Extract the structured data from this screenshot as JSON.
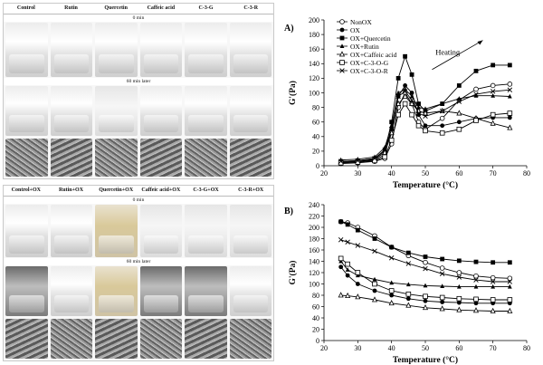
{
  "figure": {
    "top_panel": {
      "headers": [
        "Control",
        "Rutin",
        "Quercetin",
        "Caffeic acid",
        "C-3-G",
        "C-3-R"
      ],
      "caption_0": "0 min",
      "caption_60": "60 min later"
    },
    "bottom_panel": {
      "headers": [
        "Control+OX",
        "Rutin+OX",
        "Quercetin+OX",
        "Caffeic acid+OX",
        "C-3-G+OX",
        "C-3-R+OX"
      ],
      "caption_0": "0 min",
      "caption_60": "60 min later"
    }
  },
  "chart_data": [
    {
      "type": "line",
      "panel_label": "A)",
      "title": "",
      "xlabel": "Temperature (°C)",
      "ylabel": "G'(Pa)",
      "xlim": [
        20,
        80
      ],
      "ylim": [
        0,
        200
      ],
      "xticks": [
        20,
        30,
        40,
        50,
        60,
        70,
        80
      ],
      "yticks": [
        0,
        20,
        40,
        60,
        80,
        100,
        120,
        140,
        160,
        180,
        200
      ],
      "annotation": "Heating",
      "legend": [
        "NonOX",
        "OX",
        "OX+Quercetin",
        "OX+Rutin",
        "OX+Caffeic acid",
        "OX+C-3-O-G",
        "OX+C-3-O-R"
      ],
      "series": [
        {
          "name": "NonOX",
          "marker": "circle-open",
          "x": [
            25,
            30,
            35,
            38,
            40,
            42,
            44,
            46,
            48,
            50,
            55,
            60,
            65,
            70,
            75
          ],
          "y": [
            3,
            4,
            6,
            10,
            30,
            80,
            100,
            85,
            60,
            50,
            65,
            90,
            105,
            110,
            112
          ]
        },
        {
          "name": "OX",
          "marker": "circle-filled",
          "x": [
            25,
            30,
            35,
            38,
            40,
            42,
            44,
            46,
            48,
            50,
            55,
            60,
            65,
            70,
            75
          ],
          "y": [
            5,
            6,
            8,
            15,
            50,
            95,
            110,
            100,
            70,
            55,
            55,
            60,
            65,
            66,
            66
          ]
        },
        {
          "name": "OX+Quercetin",
          "marker": "square-filled",
          "x": [
            25,
            30,
            35,
            38,
            40,
            42,
            44,
            46,
            48,
            50,
            55,
            60,
            65,
            70,
            75
          ],
          "y": [
            6,
            7,
            10,
            20,
            60,
            120,
            150,
            125,
            85,
            75,
            85,
            110,
            130,
            138,
            138
          ]
        },
        {
          "name": "OX+Rutin",
          "marker": "triangle-filled",
          "x": [
            25,
            30,
            35,
            38,
            40,
            42,
            44,
            46,
            48,
            50,
            55,
            60,
            65,
            70,
            75
          ],
          "y": [
            8,
            9,
            12,
            25,
            55,
            100,
            105,
            95,
            80,
            78,
            85,
            92,
            96,
            96,
            95
          ]
        },
        {
          "name": "OX+Caffeic acid",
          "marker": "triangle-open",
          "x": [
            25,
            30,
            35,
            38,
            40,
            42,
            44,
            46,
            48,
            50,
            55,
            60,
            65,
            70,
            75
          ],
          "y": [
            5,
            6,
            9,
            18,
            45,
            85,
            95,
            85,
            75,
            72,
            75,
            72,
            65,
            58,
            52
          ]
        },
        {
          "name": "OX+C-3-O-G",
          "marker": "square-open",
          "x": [
            25,
            30,
            35,
            38,
            40,
            42,
            44,
            46,
            48,
            50,
            55,
            60,
            65,
            70,
            75
          ],
          "y": [
            4,
            5,
            7,
            12,
            35,
            70,
            85,
            70,
            55,
            48,
            45,
            50,
            62,
            70,
            72
          ]
        },
        {
          "name": "OX+C-3-O-R",
          "marker": "cross",
          "x": [
            25,
            30,
            35,
            38,
            40,
            42,
            44,
            46,
            48,
            50,
            55,
            60,
            65,
            70,
            75
          ],
          "y": [
            6,
            7,
            10,
            22,
            50,
            95,
            102,
            90,
            72,
            68,
            75,
            88,
            98,
            102,
            104
          ]
        }
      ]
    },
    {
      "type": "line",
      "panel_label": "B)",
      "title": "",
      "xlabel": "Temperature (°C)",
      "ylabel": "G'(Pa)",
      "xlim": [
        20,
        80
      ],
      "ylim": [
        0,
        240
      ],
      "xticks": [
        20,
        30,
        40,
        50,
        60,
        70,
        80
      ],
      "yticks": [
        0,
        20,
        40,
        60,
        80,
        100,
        120,
        140,
        160,
        180,
        200,
        220,
        240
      ],
      "series": [
        {
          "name": "NonOX",
          "marker": "circle-open",
          "x": [
            25,
            27,
            30,
            35,
            40,
            45,
            50,
            55,
            60,
            65,
            70,
            75
          ],
          "y": [
            210,
            208,
            200,
            185,
            165,
            150,
            138,
            128,
            120,
            114,
            111,
            110
          ]
        },
        {
          "name": "OX",
          "marker": "circle-filled",
          "x": [
            25,
            27,
            30,
            35,
            40,
            45,
            50,
            55,
            60,
            65,
            70,
            75
          ],
          "y": [
            130,
            115,
            100,
            88,
            80,
            74,
            70,
            68,
            67,
            66,
            66,
            66
          ]
        },
        {
          "name": "OX+Quercetin",
          "marker": "square-filled",
          "x": [
            25,
            27,
            30,
            35,
            40,
            45,
            50,
            55,
            60,
            65,
            70,
            75
          ],
          "y": [
            210,
            205,
            195,
            180,
            165,
            155,
            148,
            144,
            141,
            139,
            138,
            138
          ]
        },
        {
          "name": "OX+Rutin",
          "marker": "triangle-filled",
          "x": [
            25,
            27,
            30,
            35,
            40,
            45,
            50,
            55,
            60,
            65,
            70,
            75
          ],
          "y": [
            140,
            125,
            115,
            108,
            102,
            99,
            97,
            96,
            95,
            95,
            95,
            95
          ]
        },
        {
          "name": "OX+Caffeic acid",
          "marker": "triangle-open",
          "x": [
            25,
            27,
            30,
            35,
            40,
            45,
            50,
            55,
            60,
            65,
            70,
            75
          ],
          "y": [
            80,
            79,
            77,
            72,
            66,
            62,
            58,
            56,
            54,
            53,
            52,
            52
          ]
        },
        {
          "name": "OX+C-3-O-G",
          "marker": "square-open",
          "x": [
            25,
            27,
            30,
            35,
            40,
            45,
            50,
            55,
            60,
            65,
            70,
            75
          ],
          "y": [
            145,
            135,
            120,
            100,
            88,
            82,
            78,
            76,
            74,
            73,
            72,
            72
          ]
        },
        {
          "name": "OX+C-3-O-R",
          "marker": "cross",
          "x": [
            25,
            27,
            30,
            35,
            40,
            45,
            50,
            55,
            60,
            65,
            70,
            75
          ],
          "y": [
            178,
            174,
            168,
            158,
            146,
            136,
            127,
            118,
            112,
            107,
            104,
            104
          ]
        }
      ]
    }
  ]
}
